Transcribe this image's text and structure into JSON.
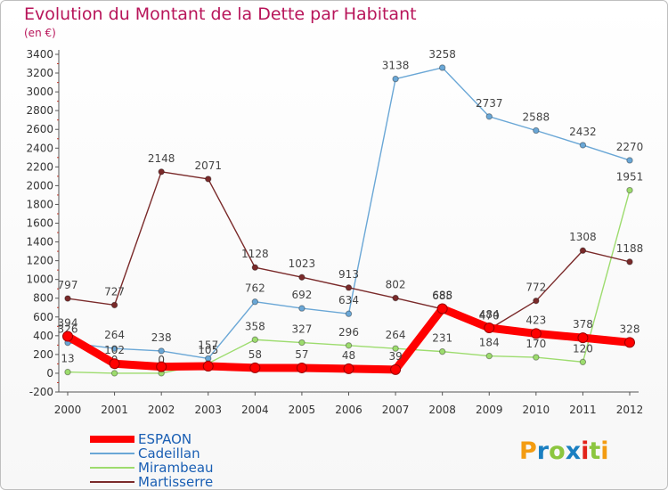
{
  "title": "Evolution du Montant de la Dette par Habitant",
  "subtitle": "(en €)",
  "logo": {
    "text": "Proxiti",
    "colors": [
      "#f39c12",
      "#1a7fc1",
      "#8cc63f",
      "#1a7fc1",
      "#e2231a",
      "#8cc63f",
      "#f39c12"
    ]
  },
  "chart_data": {
    "type": "line",
    "title": "Evolution du Montant de la Dette par Habitant",
    "subtitle": "(en €)",
    "xlabel": "",
    "ylabel": "",
    "x": [
      "2000",
      "2001",
      "2002",
      "2003",
      "2004",
      "2005",
      "2006",
      "2007",
      "2008",
      "2009",
      "2010",
      "2011",
      "2012"
    ],
    "ylim": [
      -200,
      3400
    ],
    "yticks": [
      -200,
      0,
      200,
      400,
      600,
      800,
      1000,
      1200,
      1400,
      1600,
      1800,
      2000,
      2200,
      2400,
      2600,
      2800,
      3000,
      3200,
      3400
    ],
    "grid": false,
    "legend_position": "bottom-left",
    "series": [
      {
        "name": "ESPAON",
        "color": "#ff0000",
        "width": 9,
        "values": [
          394,
          102,
          70,
          75,
          58,
          57,
          48,
          39,
          688,
          484,
          423,
          378,
          328
        ],
        "labels": [
          "394",
          "102",
          "",
          "",
          "58",
          "57",
          "48",
          "39",
          "688",
          "484",
          "423",
          "378",
          "328"
        ]
      },
      {
        "name": "Cadeillan",
        "color": "#6aa7d6",
        "width": 1.4,
        "values": [
          326,
          264,
          238,
          157,
          762,
          692,
          634,
          3138,
          3258,
          2737,
          2588,
          2432,
          2270
        ],
        "labels": [
          "326",
          "264",
          "238",
          "157",
          "762",
          "692",
          "634",
          "3138",
          "3258",
          "2737",
          "2588",
          "2432",
          "2270"
        ]
      },
      {
        "name": "Mirambeau",
        "color": "#9ddc6e",
        "width": 1.4,
        "values": [
          13,
          0,
          0,
          105,
          358,
          327,
          296,
          264,
          231,
          184,
          170,
          120,
          1951
        ],
        "labels": [
          "13",
          "0",
          "0",
          "105",
          "358",
          "327",
          "296",
          "264",
          "231",
          "184",
          "170",
          "120",
          "1951"
        ]
      },
      {
        "name": "Martisserre",
        "color": "#7a2a2a",
        "width": 1.4,
        "values": [
          797,
          727,
          2148,
          2071,
          1128,
          1023,
          913,
          802,
          685,
          470,
          772,
          1308,
          1188
        ],
        "labels": [
          "797",
          "727",
          "2148",
          "2071",
          "1128",
          "1023",
          "913",
          "802",
          "685",
          "470",
          "772",
          "1308",
          "1188"
        ]
      }
    ]
  }
}
